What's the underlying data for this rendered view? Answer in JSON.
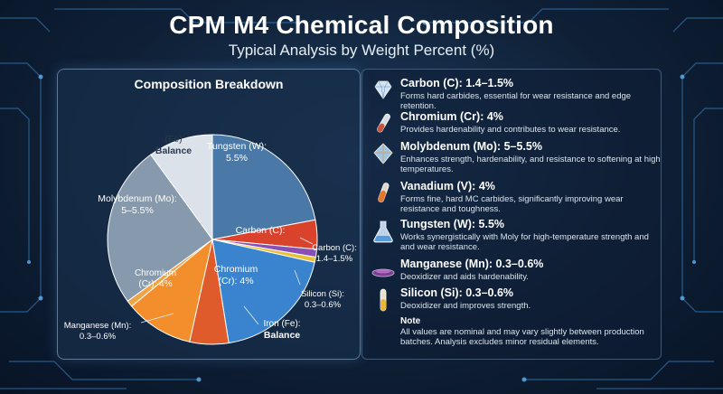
{
  "header": {
    "title": "CPM M4 Chemical Composition",
    "subtitle": "Typical Analysis by Weight Percent (%)"
  },
  "chart_data": {
    "type": "pie",
    "title": "Composition Breakdown",
    "slices": [
      {
        "name": "Tungsten (W)",
        "value_label": "5.5%",
        "share": 0.22,
        "color": "#4a79a8"
      },
      {
        "name": "Carbon (C)",
        "value_label": "1.4–1.5%",
        "share": 0.045,
        "color": "#d9432b"
      },
      {
        "name": "Vanadium (V)",
        "value_label": "4%",
        "share": 0.012,
        "color": "#8a4fb5"
      },
      {
        "name": "Silicon (Si)",
        "value_label": "0.3–0.6%",
        "share": 0.008,
        "color": "#e6c233"
      },
      {
        "name": "Chromium (Cr)",
        "value_label": "4%",
        "share": 0.19,
        "color": "#3a84cf"
      },
      {
        "name": "Iron (Fe)",
        "value_label": "Balance",
        "share": 0.06,
        "color": "#e05b2b"
      },
      {
        "name": "Chromium (Cr)",
        "value_label": "4%",
        "share": 0.105,
        "color": "#f28e2b"
      },
      {
        "name": "Manganese (Mn)",
        "value_label": "0.3–0.6%",
        "share": 0.01,
        "color": "#f0a347"
      },
      {
        "name": "Molybdenum (Mo)",
        "value_label": "5–5.5%",
        "share": 0.25,
        "color": "#8799ac"
      },
      {
        "name": "(Fe)",
        "value_label": "Balance",
        "share": 0.1,
        "color": "#dce2ea"
      }
    ],
    "labels": {
      "tungsten_name": "Tungsten (W):",
      "tungsten_value": "5.5%",
      "carbon_inner": "Carbon (C):",
      "carbon_outer_name": "Carbon (C):",
      "carbon_outer_value": "1.4–1.5%",
      "moly_name": "Molybdenum (Mo):",
      "moly_value": "5–5.5%",
      "fe_name": "(Fe)",
      "fe_value": "Balance",
      "chromium_blue_name": "Chromium",
      "chromium_blue_value": "(Cr): 4%",
      "chromium_orange_name": "Chromium",
      "chromium_orange_value": "(Cr): 4%",
      "silicon_name": "Silicon (Si):",
      "silicon_value": "0.3–0.6%",
      "iron_name": "Iron (Fe):",
      "iron_value": "Balance",
      "manganese_name": "Manganese (Mn):",
      "manganese_value": "0.3–0.6%"
    }
  },
  "elements": [
    {
      "name": "Carbon (C): 1.4–1.5%",
      "desc": "Forms hard carbides, essential for wear resistance and edge retention.",
      "icon": "diamond-icon"
    },
    {
      "name": "Chromium (Cr): 4%",
      "desc": "Provides hardenability and contributes to wear resistance.",
      "icon": "test-tube-icon"
    },
    {
      "name": "Molybdenum (Mo): 5–5.5%",
      "desc": "Enhances strength, hardenability, and resistance to softening at high temperatures.",
      "icon": "crystal-icon"
    },
    {
      "name": "Vanadium (V): 4%",
      "desc": "Forms fine, hard MC carbides, significantly improving wear resistance and toughness.",
      "icon": "test-tube-icon"
    },
    {
      "name": "Tungsten (W): 5.5%",
      "desc": "Works synergistically with Moly for high-temperature strength and and wear resistance.",
      "icon": "flask-icon"
    },
    {
      "name": "Manganese (Mn): 0.3–0.6%",
      "desc": "Deoxidizer and aids hardenability.",
      "icon": "dish-icon"
    },
    {
      "name": "Silicon (Si): 0.3–0.6%",
      "desc": "Deoxidizer and improves strength.",
      "icon": "vial-icon"
    }
  ],
  "note": {
    "title": "Note",
    "text": "All values are nominal and may vary slightly between production batches. Analysis excludes minor residual elements."
  }
}
